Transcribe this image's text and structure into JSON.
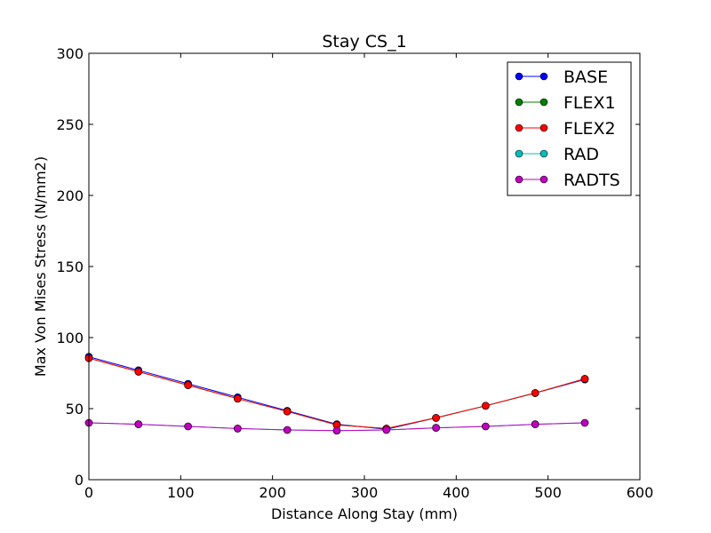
{
  "chart_data": {
    "type": "line",
    "title": "Stay CS_1",
    "xlabel": "Distance Along Stay (mm)",
    "ylabel": "Max Von Mises Stress (N/mm2)",
    "xlim": [
      0,
      600
    ],
    "ylim": [
      0,
      300
    ],
    "xticks": [
      0,
      100,
      200,
      300,
      400,
      500,
      600
    ],
    "yticks": [
      0,
      50,
      100,
      150,
      200,
      250,
      300
    ],
    "grid": false,
    "legend_position": "top-right",
    "x": [
      0,
      54,
      108,
      162,
      216,
      270,
      324,
      378,
      432,
      486,
      540
    ],
    "series": [
      {
        "name": "BASE",
        "color": "#0000ff",
        "values": [
          86.5,
          77.0,
          67.5,
          58.0,
          48.5,
          39.0,
          35.5,
          43.5,
          52.0,
          61.0,
          70.5
        ]
      },
      {
        "name": "FLEX1",
        "color": "#008000",
        "values": [
          85.5,
          76.0,
          66.5,
          57.0,
          48.0,
          38.5,
          36.0,
          43.5,
          52.0,
          61.0,
          71.0
        ]
      },
      {
        "name": "FLEX2",
        "color": "#ff0000",
        "values": [
          85.5,
          76.0,
          66.5,
          57.0,
          48.0,
          38.5,
          36.0,
          43.5,
          52.0,
          61.0,
          71.0
        ]
      },
      {
        "name": "RAD",
        "color": "#00bfbf",
        "values": [
          40.0,
          39.0,
          37.5,
          36.0,
          35.0,
          34.5,
          35.0,
          36.5,
          37.5,
          39.0,
          40.0
        ]
      },
      {
        "name": "RADTS",
        "color": "#bf00bf",
        "values": [
          40.0,
          39.0,
          37.5,
          36.0,
          35.0,
          34.5,
          35.0,
          36.5,
          37.5,
          39.0,
          40.0
        ]
      }
    ]
  }
}
